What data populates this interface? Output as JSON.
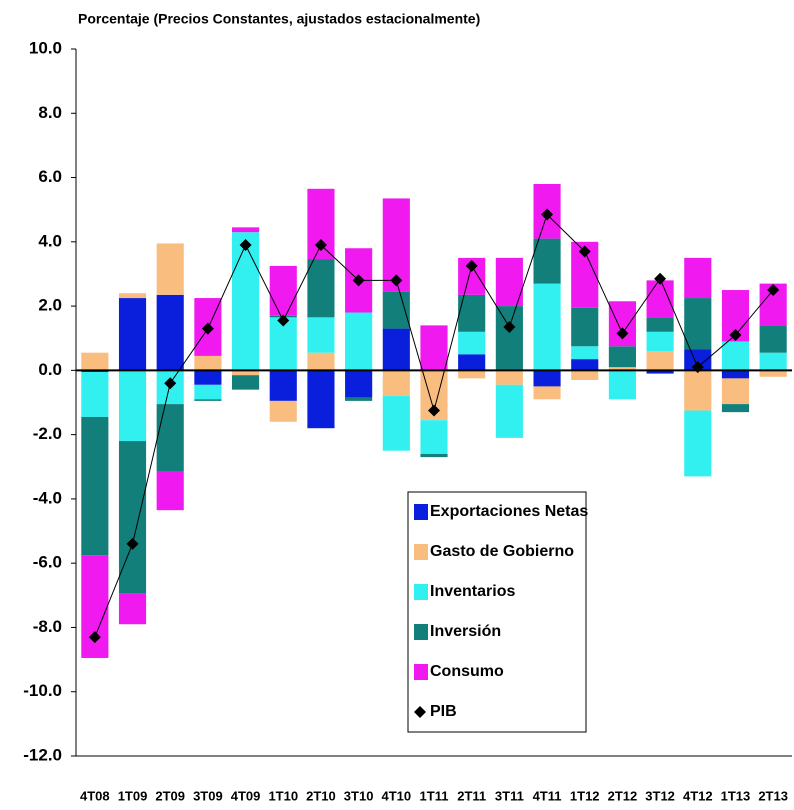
{
  "chart_data": {
    "type": "bar",
    "stacked": true,
    "title": "Porcentaje (Precios Constantes, ajustados estacionalmente)",
    "categories": [
      "4T08",
      "1T09",
      "2T09",
      "3T09",
      "4T09",
      "1T10",
      "2T10",
      "3T10",
      "4T10",
      "1T11",
      "2T11",
      "3T11",
      "4T11",
      "1T12",
      "2T12",
      "3T12",
      "4T12",
      "1T13",
      "2T13"
    ],
    "series": [
      {
        "name": "Exportaciones Netas",
        "type": "bar",
        "color": "#0a1fdb",
        "values": [
          -0.05,
          2.25,
          2.35,
          -0.45,
          0,
          -0.95,
          -1.8,
          -0.85,
          1.3,
          0,
          0.5,
          0,
          -0.5,
          0.35,
          0,
          -0.1,
          0.65,
          -0.25,
          0
        ]
      },
      {
        "name": "Gasto de Gobierno",
        "type": "bar",
        "color": "#f9be7f",
        "values": [
          0.55,
          0.15,
          1.6,
          0.45,
          -0.15,
          -0.65,
          0.55,
          0,
          -0.8,
          -1.55,
          -0.25,
          -0.45,
          -0.4,
          -0.3,
          0.1,
          0.6,
          -1.25,
          -0.8,
          -0.2
        ]
      },
      {
        "name": "Inventarios",
        "type": "bar",
        "color": "#33f0f0",
        "values": [
          -1.4,
          -2.2,
          -1.05,
          -0.45,
          4.3,
          1.65,
          1.1,
          1.8,
          -1.7,
          -1.05,
          0.7,
          -1.65,
          2.7,
          0.4,
          -0.9,
          0.6,
          -2.05,
          0.9,
          0.55
        ]
      },
      {
        "name": "Inversión",
        "type": "bar",
        "color": "#127f7a",
        "values": [
          -4.3,
          -4.75,
          -2.1,
          -0.05,
          -0.45,
          0.05,
          1.8,
          -0.1,
          1.15,
          -0.1,
          1.15,
          2.0,
          1.4,
          1.2,
          0.65,
          0.45,
          1.6,
          -0.25,
          0.85
        ]
      },
      {
        "name": "Consumo",
        "type": "bar",
        "color": "#f019f0",
        "values": [
          -3.2,
          -0.95,
          -1.2,
          1.8,
          0.15,
          1.55,
          2.2,
          2.0,
          2.9,
          1.4,
          1.15,
          1.5,
          1.7,
          2.05,
          1.4,
          1.15,
          1.25,
          1.6,
          1.3
        ]
      },
      {
        "name": "PIB",
        "type": "line",
        "marker": "diamond",
        "color": "#000000",
        "values": [
          -8.3,
          -5.4,
          -0.4,
          1.3,
          3.9,
          1.55,
          3.9,
          2.8,
          2.8,
          -1.25,
          3.25,
          1.35,
          4.85,
          3.7,
          1.15,
          2.85,
          0.1,
          1.1,
          2.5
        ]
      }
    ],
    "ylim": [
      -12,
      10
    ],
    "yticks": [
      {
        "value": -12,
        "label": "-12.0"
      },
      {
        "value": -10,
        "label": "-10.0"
      },
      {
        "value": -8,
        "label": "-8.0"
      },
      {
        "value": -6,
        "label": "-6.0"
      },
      {
        "value": -4,
        "label": "-4.0"
      },
      {
        "value": -2,
        "label": "-2.0"
      },
      {
        "value": 0,
        "label": "0.0"
      },
      {
        "value": 2,
        "label": "2.0"
      },
      {
        "value": 4,
        "label": "4.0"
      },
      {
        "value": 6,
        "label": "6.0"
      },
      {
        "value": 8,
        "label": "8.0"
      },
      {
        "value": 10,
        "label": "10.0"
      }
    ],
    "grid": false,
    "legend_position": "bottom-center"
  }
}
